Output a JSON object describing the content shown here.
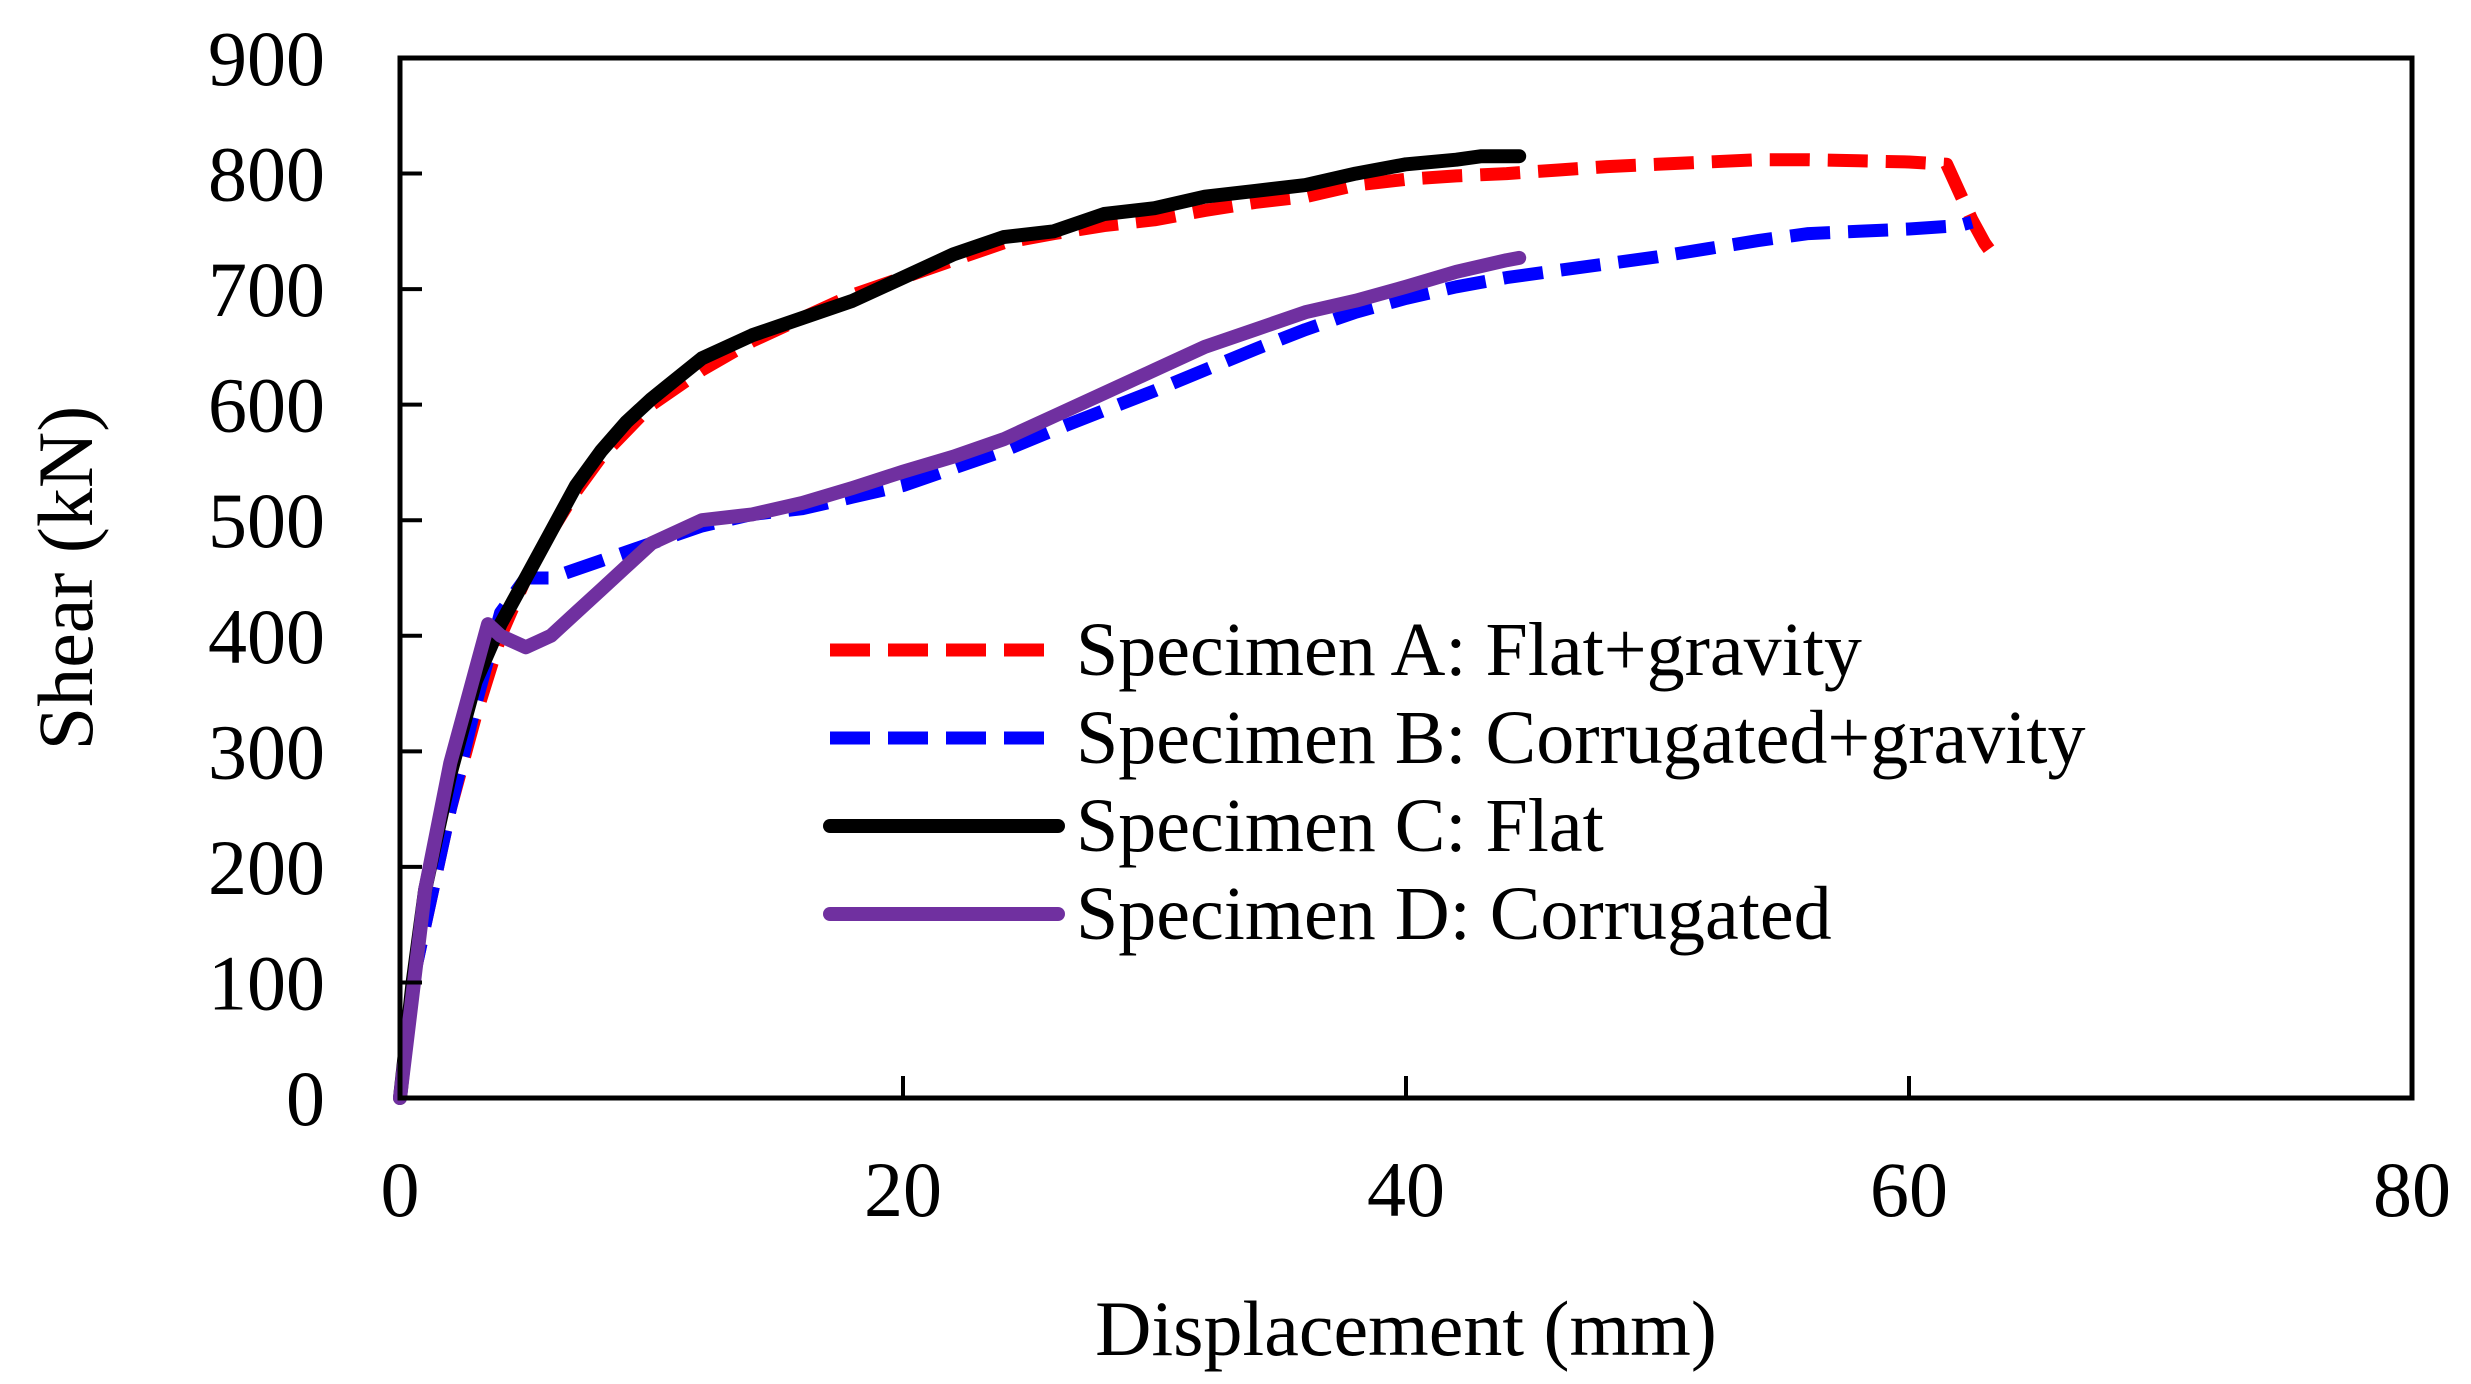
{
  "chart_data": {
    "type": "line",
    "title": "",
    "xlabel": "Displacement (mm)",
    "ylabel": "Shear (kN)",
    "xlim": [
      0,
      80
    ],
    "ylim": [
      0,
      900
    ],
    "xticks": [
      0,
      20,
      40,
      60,
      80
    ],
    "yticks": [
      0,
      100,
      200,
      300,
      400,
      500,
      600,
      700,
      800,
      900
    ],
    "grid": false,
    "legend_position": "center-right",
    "series": [
      {
        "name": "Specimen A: Flat+gravity",
        "color": "#ff0000",
        "style": "dashed",
        "x": [
          0,
          0.5,
          1,
          2,
          3,
          4,
          5,
          6,
          7,
          8,
          10,
          12,
          14,
          16,
          18,
          20,
          22,
          24,
          26,
          28,
          30,
          32,
          34,
          36,
          38,
          40,
          42,
          44,
          46,
          48,
          50,
          52,
          54,
          56,
          58,
          60,
          61.5,
          62.5,
          63,
          63.5
        ],
        "y": [
          0,
          100,
          150,
          250,
          330,
          400,
          450,
          490,
          525,
          555,
          600,
          630,
          655,
          675,
          695,
          710,
          725,
          740,
          748,
          755,
          760,
          768,
          775,
          780,
          790,
          795,
          798,
          800,
          803,
          806,
          808,
          810,
          812,
          812,
          811,
          810,
          808,
          760,
          740,
          725
        ]
      },
      {
        "name": "Specimen B: Corrugated+gravity",
        "color": "#0000ff",
        "style": "dashed",
        "x": [
          0,
          0.5,
          1,
          2,
          3,
          4,
          5,
          6,
          8,
          10,
          12,
          14,
          16,
          18,
          20,
          22,
          24,
          26,
          28,
          30,
          32,
          34,
          36,
          38,
          40,
          42,
          44,
          46,
          48,
          50,
          52,
          54,
          56,
          58,
          60,
          62,
          62.5
        ],
        "y": [
          0,
          100,
          150,
          250,
          340,
          420,
          450,
          450,
          465,
          480,
          495,
          505,
          510,
          520,
          530,
          545,
          560,
          578,
          595,
          612,
          630,
          648,
          665,
          680,
          692,
          702,
          710,
          716,
          722,
          728,
          735,
          742,
          748,
          750,
          752,
          755,
          758
        ]
      },
      {
        "name": "Specimen C: Flat",
        "color": "#000000",
        "style": "solid",
        "x": [
          0,
          0.5,
          1,
          2,
          3,
          4,
          5,
          6,
          7,
          8,
          9,
          10,
          12,
          14,
          16,
          18,
          20,
          22,
          24,
          26,
          28,
          30,
          32,
          34,
          36,
          38,
          40,
          42,
          43,
          44.5
        ],
        "y": [
          0,
          100,
          180,
          280,
          360,
          410,
          450,
          490,
          530,
          560,
          585,
          605,
          640,
          660,
          675,
          690,
          710,
          730,
          745,
          750,
          765,
          770,
          780,
          785,
          790,
          800,
          808,
          812,
          815,
          815
        ]
      },
      {
        "name": "Specimen D: Corrugated",
        "color": "#7030a0",
        "style": "solid",
        "x": [
          0,
          0.5,
          1,
          2,
          3,
          3.5,
          4,
          5,
          6,
          7,
          8,
          9,
          10,
          12,
          14,
          16,
          18,
          20,
          22,
          24,
          26,
          28,
          30,
          32,
          34,
          36,
          38,
          40,
          42,
          44,
          44.5
        ],
        "y": [
          0,
          90,
          180,
          290,
          370,
          410,
          400,
          390,
          400,
          420,
          440,
          460,
          480,
          500,
          505,
          515,
          528,
          542,
          555,
          570,
          590,
          610,
          630,
          650,
          665,
          680,
          690,
          702,
          715,
          725,
          727
        ]
      }
    ]
  }
}
